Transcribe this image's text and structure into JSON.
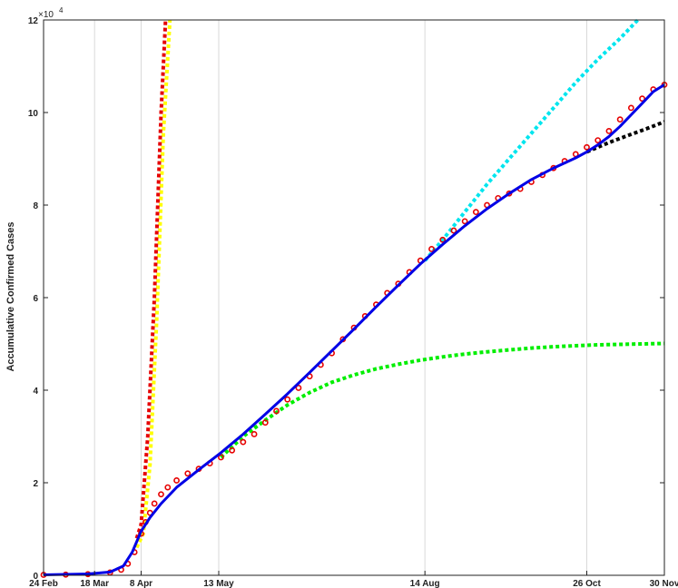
{
  "chart_data": {
    "type": "line",
    "title": "",
    "xlabel": "",
    "ylabel": "Accumulative Confirmed Cases",
    "y_exponent_label": "×10",
    "y_exponent_power": "4",
    "x_tick_labels": [
      "24 Feb",
      "18 Mar",
      "8 Apr",
      "13 May",
      "14 Aug",
      "26 Oct",
      "30 Nov"
    ],
    "x_tick_days": [
      0,
      23,
      44,
      79,
      172,
      245,
      280
    ],
    "vertical_grid_days": [
      23,
      44,
      79,
      172,
      245
    ],
    "y_tick_labels": [
      "0",
      "2",
      "4",
      "6",
      "8",
      "10",
      "12"
    ],
    "y_tick_values": [
      0,
      20000,
      40000,
      60000,
      80000,
      100000,
      120000
    ],
    "xlim_days": [
      0,
      280
    ],
    "ylim": [
      0,
      120000
    ],
    "grid": "vertical lines only",
    "series": [
      {
        "style": "red-circle-markers",
        "color": "#e60000",
        "points": [
          [
            0,
            100
          ],
          [
            10,
            150
          ],
          [
            20,
            250
          ],
          [
            30,
            600
          ],
          [
            35,
            1200
          ],
          [
            38,
            2500
          ],
          [
            41,
            5000
          ],
          [
            44,
            9000
          ],
          [
            46,
            11500
          ],
          [
            48,
            13500
          ],
          [
            50,
            15500
          ],
          [
            53,
            17500
          ],
          [
            56,
            19000
          ],
          [
            60,
            20500
          ],
          [
            65,
            22000
          ],
          [
            70,
            23000
          ],
          [
            75,
            24200
          ],
          [
            80,
            25500
          ],
          [
            85,
            27000
          ],
          [
            90,
            28800
          ],
          [
            95,
            30500
          ],
          [
            100,
            33000
          ],
          [
            105,
            35500
          ],
          [
            110,
            38000
          ],
          [
            115,
            40500
          ],
          [
            120,
            43000
          ],
          [
            125,
            45500
          ],
          [
            130,
            48000
          ],
          [
            135,
            51000
          ],
          [
            140,
            53500
          ],
          [
            145,
            56000
          ],
          [
            150,
            58500
          ],
          [
            155,
            61000
          ],
          [
            160,
            63000
          ],
          [
            165,
            65500
          ],
          [
            170,
            68000
          ],
          [
            175,
            70500
          ],
          [
            180,
            72500
          ],
          [
            185,
            74500
          ],
          [
            190,
            76500
          ],
          [
            195,
            78500
          ],
          [
            200,
            80000
          ],
          [
            205,
            81500
          ],
          [
            210,
            82500
          ],
          [
            215,
            83500
          ],
          [
            220,
            85000
          ],
          [
            225,
            86500
          ],
          [
            230,
            88000
          ],
          [
            235,
            89500
          ],
          [
            240,
            91000
          ],
          [
            245,
            92500
          ],
          [
            250,
            94000
          ],
          [
            255,
            96000
          ],
          [
            260,
            98500
          ],
          [
            265,
            101000
          ],
          [
            270,
            103000
          ],
          [
            275,
            105000
          ],
          [
            280,
            106000
          ]
        ]
      },
      {
        "style": "blue-solid",
        "color": "#0000e6",
        "points": [
          [
            0,
            100
          ],
          [
            20,
            300
          ],
          [
            30,
            700
          ],
          [
            36,
            2000
          ],
          [
            40,
            5000
          ],
          [
            44,
            9500
          ],
          [
            48,
            12500
          ],
          [
            53,
            15500
          ],
          [
            60,
            19000
          ],
          [
            70,
            22800
          ],
          [
            80,
            26500
          ],
          [
            90,
            30500
          ],
          [
            100,
            34800
          ],
          [
            110,
            39200
          ],
          [
            120,
            43800
          ],
          [
            130,
            48500
          ],
          [
            140,
            53200
          ],
          [
            150,
            58000
          ],
          [
            160,
            62700
          ],
          [
            170,
            67300
          ],
          [
            180,
            71500
          ],
          [
            190,
            75500
          ],
          [
            200,
            79200
          ],
          [
            210,
            82500
          ],
          [
            220,
            85500
          ],
          [
            230,
            88000
          ],
          [
            240,
            90200
          ],
          [
            245,
            91500
          ],
          [
            250,
            93000
          ],
          [
            255,
            94800
          ],
          [
            260,
            97000
          ],
          [
            265,
            99500
          ],
          [
            270,
            102000
          ],
          [
            275,
            104500
          ],
          [
            280,
            106000
          ]
        ]
      },
      {
        "style": "red-dotted",
        "color": "#e60000",
        "points": [
          [
            42,
            8000
          ],
          [
            44,
            11000
          ],
          [
            47,
            30000
          ],
          [
            50,
            60000
          ],
          [
            53,
            100000
          ],
          [
            55,
            120000
          ]
        ]
      },
      {
        "style": "yellow-dotted",
        "color": "#ffff00",
        "points": [
          [
            42,
            6000
          ],
          [
            45,
            9000
          ],
          [
            48,
            24000
          ],
          [
            51,
            55000
          ],
          [
            54,
            95000
          ],
          [
            57,
            120000
          ]
        ]
      },
      {
        "style": "green-dotted",
        "color": "#00ee00",
        "points": [
          [
            80,
            25500
          ],
          [
            90,
            30000
          ],
          [
            100,
            33500
          ],
          [
            110,
            36800
          ],
          [
            120,
            39500
          ],
          [
            130,
            41700
          ],
          [
            140,
            43300
          ],
          [
            150,
            44600
          ],
          [
            160,
            45600
          ],
          [
            170,
            46500
          ],
          [
            180,
            47200
          ],
          [
            190,
            47800
          ],
          [
            200,
            48300
          ],
          [
            210,
            48700
          ],
          [
            220,
            49100
          ],
          [
            230,
            49400
          ],
          [
            240,
            49600
          ],
          [
            250,
            49800
          ],
          [
            260,
            49900
          ],
          [
            270,
            50000
          ],
          [
            280,
            50100
          ]
        ]
      },
      {
        "style": "cyan-dotted",
        "color": "#00e5ee",
        "points": [
          [
            172,
            68000
          ],
          [
            180,
            72500
          ],
          [
            190,
            78500
          ],
          [
            200,
            84500
          ],
          [
            210,
            90000
          ],
          [
            220,
            95500
          ],
          [
            230,
            101000
          ],
          [
            240,
            106500
          ],
          [
            250,
            111500
          ],
          [
            260,
            116000
          ],
          [
            268,
            120000
          ]
        ]
      },
      {
        "style": "black-dotted",
        "color": "#000000",
        "points": [
          [
            245,
            91500
          ],
          [
            255,
            93500
          ],
          [
            265,
            95300
          ],
          [
            272,
            96500
          ],
          [
            280,
            98000
          ]
        ]
      }
    ]
  }
}
